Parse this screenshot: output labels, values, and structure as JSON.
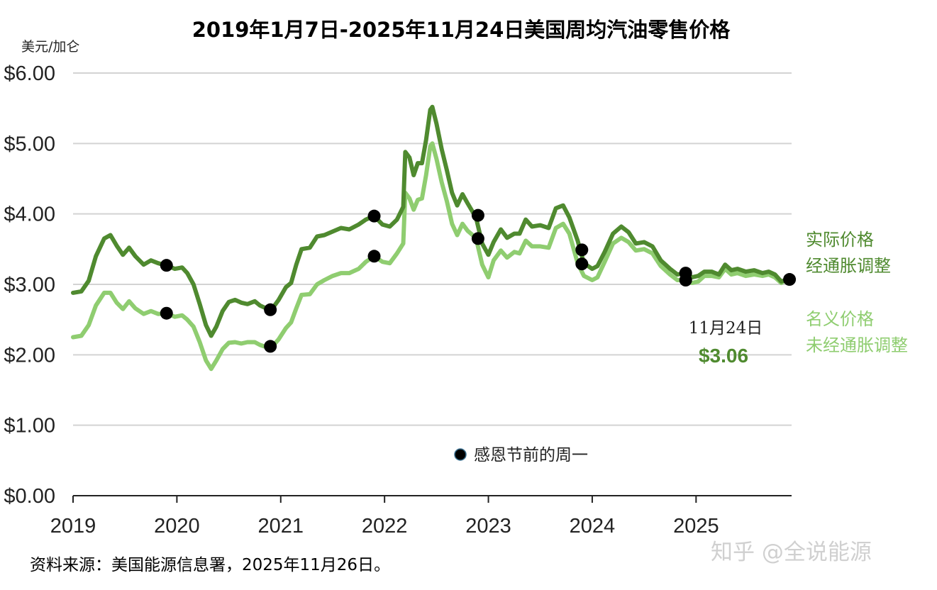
{
  "chart_data": {
    "type": "line",
    "title": "2019年1月7日-2025年11月24日美国周均汽油零售价格",
    "y_unit_label": "美元/加仑",
    "ylim": [
      0,
      6
    ],
    "xlim": [
      2019.0,
      2025.92
    ],
    "grid": true,
    "y_ticks": [
      {
        "value": 0,
        "label": "$0.00"
      },
      {
        "value": 1,
        "label": "$1.00"
      },
      {
        "value": 2,
        "label": "$2.00"
      },
      {
        "value": 3,
        "label": "$3.00"
      },
      {
        "value": 4,
        "label": "$4.00"
      },
      {
        "value": 5,
        "label": "$5.00"
      },
      {
        "value": 6,
        "label": "$6.00"
      }
    ],
    "x_ticks": [
      {
        "value": 2019,
        "label": "2019"
      },
      {
        "value": 2020,
        "label": "2020"
      },
      {
        "value": 2021,
        "label": "2021"
      },
      {
        "value": 2022,
        "label": "2022"
      },
      {
        "value": 2023,
        "label": "2023"
      },
      {
        "value": 2024,
        "label": "2024"
      },
      {
        "value": 2025,
        "label": "2025"
      }
    ],
    "series": [
      {
        "name": "实际价格\n经通胀调整",
        "label_lines": [
          "实际价格",
          "经通胀调整"
        ],
        "color": "#4f8a2f",
        "points": [
          [
            2019.0,
            2.88
          ],
          [
            2019.08,
            2.9
          ],
          [
            2019.15,
            3.05
          ],
          [
            2019.22,
            3.4
          ],
          [
            2019.3,
            3.65
          ],
          [
            2019.36,
            3.7
          ],
          [
            2019.42,
            3.55
          ],
          [
            2019.48,
            3.42
          ],
          [
            2019.54,
            3.52
          ],
          [
            2019.6,
            3.4
          ],
          [
            2019.68,
            3.28
          ],
          [
            2019.75,
            3.34
          ],
          [
            2019.82,
            3.3
          ],
          [
            2019.9,
            3.27
          ],
          [
            2019.98,
            3.22
          ],
          [
            2020.05,
            3.24
          ],
          [
            2020.1,
            3.16
          ],
          [
            2020.16,
            3.0
          ],
          [
            2020.22,
            2.72
          ],
          [
            2020.28,
            2.42
          ],
          [
            2020.33,
            2.27
          ],
          [
            2020.38,
            2.4
          ],
          [
            2020.44,
            2.62
          ],
          [
            2020.5,
            2.75
          ],
          [
            2020.56,
            2.78
          ],
          [
            2020.62,
            2.74
          ],
          [
            2020.68,
            2.72
          ],
          [
            2020.75,
            2.76
          ],
          [
            2020.8,
            2.7
          ],
          [
            2020.86,
            2.66
          ],
          [
            2020.92,
            2.66
          ],
          [
            2020.98,
            2.78
          ],
          [
            2021.05,
            2.96
          ],
          [
            2021.1,
            3.02
          ],
          [
            2021.15,
            3.28
          ],
          [
            2021.2,
            3.5
          ],
          [
            2021.28,
            3.52
          ],
          [
            2021.35,
            3.68
          ],
          [
            2021.42,
            3.7
          ],
          [
            2021.5,
            3.75
          ],
          [
            2021.58,
            3.8
          ],
          [
            2021.66,
            3.78
          ],
          [
            2021.75,
            3.85
          ],
          [
            2021.82,
            3.92
          ],
          [
            2021.9,
            3.97
          ],
          [
            2021.98,
            3.85
          ],
          [
            2022.05,
            3.82
          ],
          [
            2022.12,
            3.92
          ],
          [
            2022.18,
            4.1
          ],
          [
            2022.2,
            4.88
          ],
          [
            2022.24,
            4.8
          ],
          [
            2022.28,
            4.55
          ],
          [
            2022.32,
            4.72
          ],
          [
            2022.36,
            4.72
          ],
          [
            2022.4,
            5.05
          ],
          [
            2022.44,
            5.48
          ],
          [
            2022.46,
            5.52
          ],
          [
            2022.5,
            5.28
          ],
          [
            2022.55,
            4.92
          ],
          [
            2022.6,
            4.62
          ],
          [
            2022.65,
            4.3
          ],
          [
            2022.7,
            4.12
          ],
          [
            2022.75,
            4.28
          ],
          [
            2022.8,
            4.15
          ],
          [
            2022.88,
            3.95
          ],
          [
            2022.94,
            3.58
          ],
          [
            2023.0,
            3.42
          ],
          [
            2023.05,
            3.6
          ],
          [
            2023.12,
            3.78
          ],
          [
            2023.18,
            3.66
          ],
          [
            2023.25,
            3.72
          ],
          [
            2023.3,
            3.72
          ],
          [
            2023.36,
            3.92
          ],
          [
            2023.42,
            3.82
          ],
          [
            2023.5,
            3.84
          ],
          [
            2023.58,
            3.8
          ],
          [
            2023.65,
            4.08
          ],
          [
            2023.72,
            4.12
          ],
          [
            2023.78,
            3.95
          ],
          [
            2023.86,
            3.62
          ],
          [
            2023.92,
            3.3
          ],
          [
            2024.0,
            3.22
          ],
          [
            2024.05,
            3.26
          ],
          [
            2024.12,
            3.46
          ],
          [
            2024.2,
            3.72
          ],
          [
            2024.28,
            3.82
          ],
          [
            2024.35,
            3.74
          ],
          [
            2024.42,
            3.58
          ],
          [
            2024.5,
            3.6
          ],
          [
            2024.58,
            3.54
          ],
          [
            2024.66,
            3.34
          ],
          [
            2024.75,
            3.22
          ],
          [
            2024.82,
            3.14
          ],
          [
            2024.9,
            3.16
          ],
          [
            2024.96,
            3.1
          ],
          [
            2025.02,
            3.12
          ],
          [
            2025.08,
            3.18
          ],
          [
            2025.15,
            3.18
          ],
          [
            2025.22,
            3.14
          ],
          [
            2025.28,
            3.28
          ],
          [
            2025.34,
            3.2
          ],
          [
            2025.4,
            3.22
          ],
          [
            2025.48,
            3.18
          ],
          [
            2025.56,
            3.2
          ],
          [
            2025.64,
            3.16
          ],
          [
            2025.7,
            3.18
          ],
          [
            2025.76,
            3.14
          ],
          [
            2025.82,
            3.04
          ],
          [
            2025.86,
            3.06
          ],
          [
            2025.9,
            3.06
          ]
        ]
      },
      {
        "name": "名义价格\n未经通胀调整",
        "label_lines": [
          "名义价格",
          "未经通胀调整"
        ],
        "color": "#8fcd70",
        "points": [
          [
            2019.0,
            2.25
          ],
          [
            2019.08,
            2.27
          ],
          [
            2019.15,
            2.42
          ],
          [
            2019.22,
            2.7
          ],
          [
            2019.3,
            2.88
          ],
          [
            2019.36,
            2.88
          ],
          [
            2019.42,
            2.74
          ],
          [
            2019.48,
            2.65
          ],
          [
            2019.54,
            2.76
          ],
          [
            2019.6,
            2.66
          ],
          [
            2019.68,
            2.58
          ],
          [
            2019.75,
            2.62
          ],
          [
            2019.82,
            2.58
          ],
          [
            2019.9,
            2.59
          ],
          [
            2019.98,
            2.54
          ],
          [
            2020.05,
            2.56
          ],
          [
            2020.1,
            2.5
          ],
          [
            2020.16,
            2.4
          ],
          [
            2020.22,
            2.18
          ],
          [
            2020.28,
            1.92
          ],
          [
            2020.33,
            1.8
          ],
          [
            2020.38,
            1.92
          ],
          [
            2020.44,
            2.08
          ],
          [
            2020.5,
            2.17
          ],
          [
            2020.56,
            2.18
          ],
          [
            2020.62,
            2.16
          ],
          [
            2020.68,
            2.18
          ],
          [
            2020.75,
            2.18
          ],
          [
            2020.8,
            2.14
          ],
          [
            2020.86,
            2.11
          ],
          [
            2020.92,
            2.12
          ],
          [
            2020.98,
            2.22
          ],
          [
            2021.05,
            2.38
          ],
          [
            2021.1,
            2.46
          ],
          [
            2021.15,
            2.66
          ],
          [
            2021.2,
            2.85
          ],
          [
            2021.28,
            2.86
          ],
          [
            2021.35,
            3.0
          ],
          [
            2021.42,
            3.06
          ],
          [
            2021.5,
            3.12
          ],
          [
            2021.58,
            3.16
          ],
          [
            2021.66,
            3.16
          ],
          [
            2021.75,
            3.22
          ],
          [
            2021.82,
            3.32
          ],
          [
            2021.9,
            3.4
          ],
          [
            2021.98,
            3.32
          ],
          [
            2022.05,
            3.3
          ],
          [
            2022.12,
            3.44
          ],
          [
            2022.18,
            3.58
          ],
          [
            2022.2,
            4.3
          ],
          [
            2022.24,
            4.22
          ],
          [
            2022.28,
            4.06
          ],
          [
            2022.32,
            4.2
          ],
          [
            2022.36,
            4.22
          ],
          [
            2022.4,
            4.55
          ],
          [
            2022.44,
            4.96
          ],
          [
            2022.46,
            5.0
          ],
          [
            2022.5,
            4.78
          ],
          [
            2022.55,
            4.45
          ],
          [
            2022.6,
            4.18
          ],
          [
            2022.65,
            3.86
          ],
          [
            2022.7,
            3.7
          ],
          [
            2022.75,
            3.86
          ],
          [
            2022.8,
            3.76
          ],
          [
            2022.88,
            3.66
          ],
          [
            2022.94,
            3.28
          ],
          [
            2023.0,
            3.1
          ],
          [
            2023.05,
            3.34
          ],
          [
            2023.12,
            3.48
          ],
          [
            2023.18,
            3.38
          ],
          [
            2023.25,
            3.46
          ],
          [
            2023.3,
            3.44
          ],
          [
            2023.36,
            3.62
          ],
          [
            2023.42,
            3.54
          ],
          [
            2023.5,
            3.54
          ],
          [
            2023.58,
            3.52
          ],
          [
            2023.65,
            3.8
          ],
          [
            2023.72,
            3.86
          ],
          [
            2023.78,
            3.72
          ],
          [
            2023.86,
            3.3
          ],
          [
            2023.92,
            3.12
          ],
          [
            2024.0,
            3.06
          ],
          [
            2024.05,
            3.1
          ],
          [
            2024.12,
            3.32
          ],
          [
            2024.2,
            3.58
          ],
          [
            2024.28,
            3.66
          ],
          [
            2024.35,
            3.6
          ],
          [
            2024.42,
            3.48
          ],
          [
            2024.5,
            3.5
          ],
          [
            2024.58,
            3.44
          ],
          [
            2024.66,
            3.26
          ],
          [
            2024.75,
            3.14
          ],
          [
            2024.82,
            3.06
          ],
          [
            2024.9,
            3.06
          ],
          [
            2024.96,
            3.02
          ],
          [
            2025.02,
            3.04
          ],
          [
            2025.08,
            3.12
          ],
          [
            2025.15,
            3.12
          ],
          [
            2025.22,
            3.1
          ],
          [
            2025.28,
            3.22
          ],
          [
            2025.34,
            3.14
          ],
          [
            2025.4,
            3.16
          ],
          [
            2025.48,
            3.12
          ],
          [
            2025.56,
            3.14
          ],
          [
            2025.64,
            3.12
          ],
          [
            2025.7,
            3.14
          ],
          [
            2025.76,
            3.1
          ],
          [
            2025.82,
            3.02
          ],
          [
            2025.86,
            3.06
          ],
          [
            2025.9,
            3.06
          ]
        ]
      }
    ],
    "thanksgiving_markers": {
      "legend_label": "感恩节前的周一",
      "color": "#000000",
      "points": [
        [
          2019.9,
          3.27
        ],
        [
          2019.9,
          2.59
        ],
        [
          2020.9,
          2.64
        ],
        [
          2020.9,
          2.12
        ],
        [
          2021.9,
          3.97
        ],
        [
          2021.9,
          3.4
        ],
        [
          2022.9,
          3.98
        ],
        [
          2022.9,
          3.65
        ],
        [
          2023.9,
          3.49
        ],
        [
          2023.9,
          3.29
        ],
        [
          2024.9,
          3.16
        ],
        [
          2024.9,
          3.06
        ],
        [
          2025.9,
          3.07
        ]
      ]
    },
    "annotation": {
      "date_label": "11月24日",
      "value_label": "$3.06"
    }
  },
  "source": "资料来源：美国能源信息署，2025年11月26日。",
  "watermark": "知乎 @全说能源"
}
